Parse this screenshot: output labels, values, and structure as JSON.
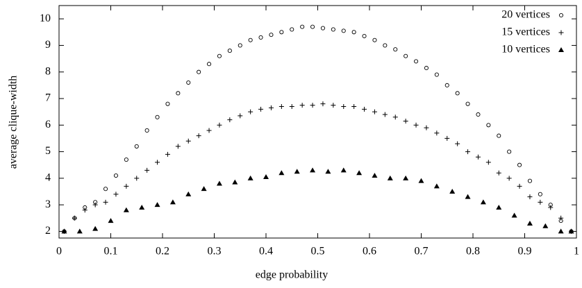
{
  "chart_data": {
    "type": "scatter",
    "xlabel": "edge probability",
    "ylabel": "average clique-width",
    "xlim": [
      0,
      1
    ],
    "ylim": [
      1.75,
      10.5
    ],
    "xticks": [
      0,
      0.1,
      0.2,
      0.3,
      0.4,
      0.5,
      0.6,
      0.7,
      0.8,
      0.9,
      1
    ],
    "yticks": [
      2,
      3,
      4,
      5,
      6,
      7,
      8,
      9,
      10
    ],
    "legend": "top-right",
    "series": [
      {
        "name": "20 vertices",
        "color": "#000000",
        "marker": "circle",
        "x": [
          0.01,
          0.03,
          0.05,
          0.07,
          0.09,
          0.11,
          0.13,
          0.15,
          0.17,
          0.19,
          0.21,
          0.23,
          0.25,
          0.27,
          0.29,
          0.31,
          0.33,
          0.35,
          0.37,
          0.39,
          0.41,
          0.43,
          0.45,
          0.47,
          0.49,
          0.51,
          0.53,
          0.55,
          0.57,
          0.59,
          0.61,
          0.63,
          0.65,
          0.67,
          0.69,
          0.71,
          0.73,
          0.75,
          0.77,
          0.79,
          0.81,
          0.83,
          0.85,
          0.87,
          0.89,
          0.91,
          0.93,
          0.95,
          0.97,
          0.99
        ],
        "values": [
          2.0,
          2.5,
          2.9,
          3.1,
          3.6,
          4.1,
          4.7,
          5.2,
          5.8,
          6.3,
          6.8,
          7.2,
          7.6,
          8.0,
          8.3,
          8.6,
          8.8,
          9.0,
          9.2,
          9.3,
          9.4,
          9.5,
          9.6,
          9.7,
          9.7,
          9.65,
          9.6,
          9.55,
          9.5,
          9.35,
          9.2,
          9.0,
          8.85,
          8.6,
          8.4,
          8.15,
          7.9,
          7.5,
          7.2,
          6.8,
          6.4,
          6.0,
          5.6,
          5.0,
          4.5,
          3.9,
          3.4,
          3.0,
          2.4,
          2.0
        ]
      },
      {
        "name": "15 vertices",
        "color": "#000000",
        "marker": "plus",
        "x": [
          0.01,
          0.03,
          0.05,
          0.07,
          0.09,
          0.11,
          0.13,
          0.15,
          0.17,
          0.19,
          0.21,
          0.23,
          0.25,
          0.27,
          0.29,
          0.31,
          0.33,
          0.35,
          0.37,
          0.39,
          0.41,
          0.43,
          0.45,
          0.47,
          0.49,
          0.51,
          0.53,
          0.55,
          0.57,
          0.59,
          0.61,
          0.63,
          0.65,
          0.67,
          0.69,
          0.71,
          0.73,
          0.75,
          0.77,
          0.79,
          0.81,
          0.83,
          0.85,
          0.87,
          0.89,
          0.91,
          0.93,
          0.95,
          0.97,
          0.99
        ],
        "values": [
          2.0,
          2.5,
          2.8,
          3.0,
          3.1,
          3.4,
          3.7,
          4.0,
          4.3,
          4.6,
          4.9,
          5.2,
          5.4,
          5.6,
          5.8,
          6.0,
          6.2,
          6.35,
          6.5,
          6.6,
          6.65,
          6.7,
          6.7,
          6.75,
          6.75,
          6.8,
          6.75,
          6.7,
          6.7,
          6.6,
          6.5,
          6.4,
          6.3,
          6.15,
          6.0,
          5.9,
          5.7,
          5.5,
          5.3,
          5.0,
          4.8,
          4.6,
          4.2,
          4.0,
          3.7,
          3.3,
          3.1,
          2.9,
          2.5,
          2.0
        ]
      },
      {
        "name": "10 vertices",
        "color": "#000000",
        "marker": "triangle",
        "x": [
          0.01,
          0.04,
          0.07,
          0.1,
          0.13,
          0.16,
          0.19,
          0.22,
          0.25,
          0.28,
          0.31,
          0.34,
          0.37,
          0.4,
          0.43,
          0.46,
          0.49,
          0.52,
          0.55,
          0.58,
          0.61,
          0.64,
          0.67,
          0.7,
          0.73,
          0.76,
          0.79,
          0.82,
          0.85,
          0.88,
          0.91,
          0.94,
          0.97,
          0.99
        ],
        "values": [
          2.0,
          2.0,
          2.1,
          2.4,
          2.8,
          2.9,
          3.0,
          3.1,
          3.4,
          3.6,
          3.8,
          3.85,
          4.0,
          4.05,
          4.2,
          4.25,
          4.3,
          4.25,
          4.3,
          4.2,
          4.1,
          4.0,
          4.0,
          3.9,
          3.7,
          3.5,
          3.3,
          3.1,
          2.9,
          2.6,
          2.3,
          2.2,
          2.0,
          2.0
        ]
      }
    ]
  }
}
